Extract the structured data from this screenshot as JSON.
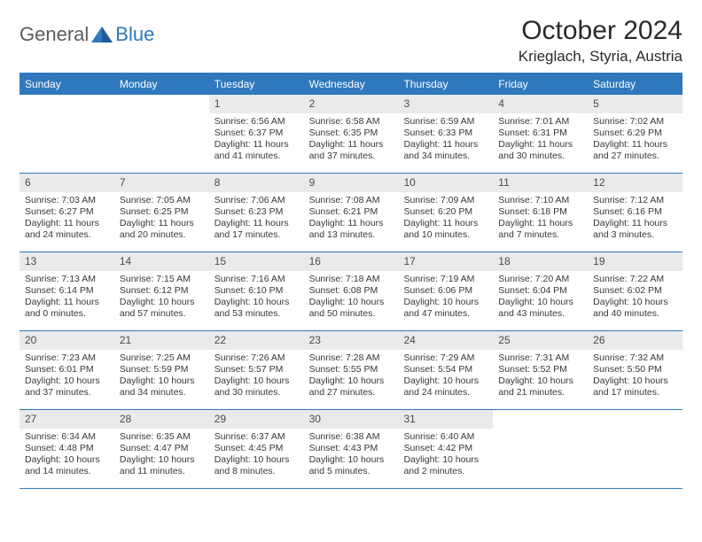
{
  "brand": {
    "part1": "General",
    "part2": "Blue"
  },
  "title": "October 2024",
  "location": "Krieglach, Styria, Austria",
  "colors": {
    "accent": "#2f78bd",
    "header_bg": "#e9eaeb",
    "text": "#383838",
    "bg": "#ffffff"
  },
  "daysOfWeek": [
    "Sunday",
    "Monday",
    "Tuesday",
    "Wednesday",
    "Thursday",
    "Friday",
    "Saturday"
  ],
  "startOffset": 2,
  "days": [
    {
      "n": 1,
      "sunrise": "6:56 AM",
      "sunset": "6:37 PM",
      "daylight": "11 hours and 41 minutes."
    },
    {
      "n": 2,
      "sunrise": "6:58 AM",
      "sunset": "6:35 PM",
      "daylight": "11 hours and 37 minutes."
    },
    {
      "n": 3,
      "sunrise": "6:59 AM",
      "sunset": "6:33 PM",
      "daylight": "11 hours and 34 minutes."
    },
    {
      "n": 4,
      "sunrise": "7:01 AM",
      "sunset": "6:31 PM",
      "daylight": "11 hours and 30 minutes."
    },
    {
      "n": 5,
      "sunrise": "7:02 AM",
      "sunset": "6:29 PM",
      "daylight": "11 hours and 27 minutes."
    },
    {
      "n": 6,
      "sunrise": "7:03 AM",
      "sunset": "6:27 PM",
      "daylight": "11 hours and 24 minutes."
    },
    {
      "n": 7,
      "sunrise": "7:05 AM",
      "sunset": "6:25 PM",
      "daylight": "11 hours and 20 minutes."
    },
    {
      "n": 8,
      "sunrise": "7:06 AM",
      "sunset": "6:23 PM",
      "daylight": "11 hours and 17 minutes."
    },
    {
      "n": 9,
      "sunrise": "7:08 AM",
      "sunset": "6:21 PM",
      "daylight": "11 hours and 13 minutes."
    },
    {
      "n": 10,
      "sunrise": "7:09 AM",
      "sunset": "6:20 PM",
      "daylight": "11 hours and 10 minutes."
    },
    {
      "n": 11,
      "sunrise": "7:10 AM",
      "sunset": "6:18 PM",
      "daylight": "11 hours and 7 minutes."
    },
    {
      "n": 12,
      "sunrise": "7:12 AM",
      "sunset": "6:16 PM",
      "daylight": "11 hours and 3 minutes."
    },
    {
      "n": 13,
      "sunrise": "7:13 AM",
      "sunset": "6:14 PM",
      "daylight": "11 hours and 0 minutes."
    },
    {
      "n": 14,
      "sunrise": "7:15 AM",
      "sunset": "6:12 PM",
      "daylight": "10 hours and 57 minutes."
    },
    {
      "n": 15,
      "sunrise": "7:16 AM",
      "sunset": "6:10 PM",
      "daylight": "10 hours and 53 minutes."
    },
    {
      "n": 16,
      "sunrise": "7:18 AM",
      "sunset": "6:08 PM",
      "daylight": "10 hours and 50 minutes."
    },
    {
      "n": 17,
      "sunrise": "7:19 AM",
      "sunset": "6:06 PM",
      "daylight": "10 hours and 47 minutes."
    },
    {
      "n": 18,
      "sunrise": "7:20 AM",
      "sunset": "6:04 PM",
      "daylight": "10 hours and 43 minutes."
    },
    {
      "n": 19,
      "sunrise": "7:22 AM",
      "sunset": "6:02 PM",
      "daylight": "10 hours and 40 minutes."
    },
    {
      "n": 20,
      "sunrise": "7:23 AM",
      "sunset": "6:01 PM",
      "daylight": "10 hours and 37 minutes."
    },
    {
      "n": 21,
      "sunrise": "7:25 AM",
      "sunset": "5:59 PM",
      "daylight": "10 hours and 34 minutes."
    },
    {
      "n": 22,
      "sunrise": "7:26 AM",
      "sunset": "5:57 PM",
      "daylight": "10 hours and 30 minutes."
    },
    {
      "n": 23,
      "sunrise": "7:28 AM",
      "sunset": "5:55 PM",
      "daylight": "10 hours and 27 minutes."
    },
    {
      "n": 24,
      "sunrise": "7:29 AM",
      "sunset": "5:54 PM",
      "daylight": "10 hours and 24 minutes."
    },
    {
      "n": 25,
      "sunrise": "7:31 AM",
      "sunset": "5:52 PM",
      "daylight": "10 hours and 21 minutes."
    },
    {
      "n": 26,
      "sunrise": "7:32 AM",
      "sunset": "5:50 PM",
      "daylight": "10 hours and 17 minutes."
    },
    {
      "n": 27,
      "sunrise": "6:34 AM",
      "sunset": "4:48 PM",
      "daylight": "10 hours and 14 minutes."
    },
    {
      "n": 28,
      "sunrise": "6:35 AM",
      "sunset": "4:47 PM",
      "daylight": "10 hours and 11 minutes."
    },
    {
      "n": 29,
      "sunrise": "6:37 AM",
      "sunset": "4:45 PM",
      "daylight": "10 hours and 8 minutes."
    },
    {
      "n": 30,
      "sunrise": "6:38 AM",
      "sunset": "4:43 PM",
      "daylight": "10 hours and 5 minutes."
    },
    {
      "n": 31,
      "sunrise": "6:40 AM",
      "sunset": "4:42 PM",
      "daylight": "10 hours and 2 minutes."
    }
  ],
  "labels": {
    "sunrise": "Sunrise:",
    "sunset": "Sunset:",
    "daylight": "Daylight:"
  }
}
